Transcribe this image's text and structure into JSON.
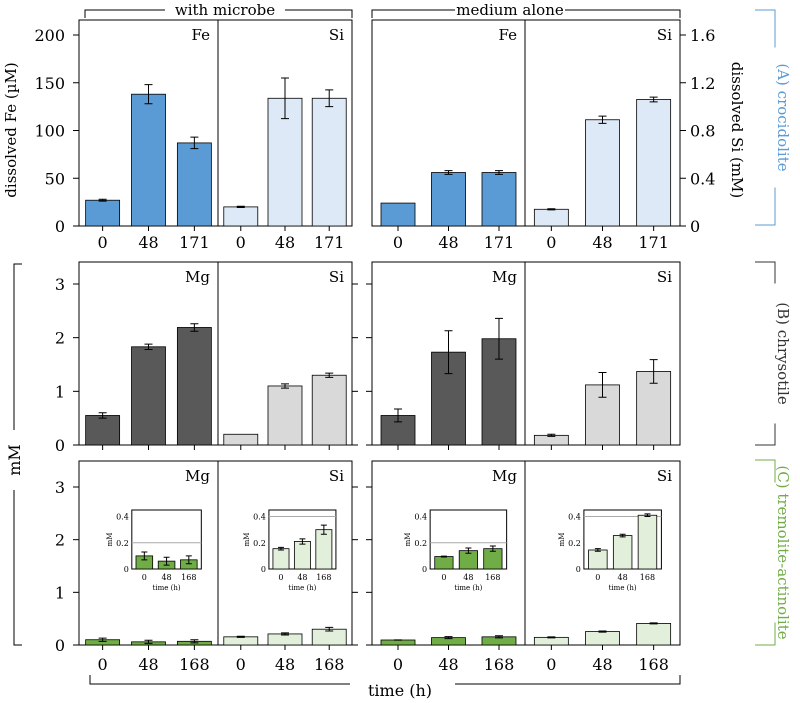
{
  "header": {
    "group_left": "with microbe",
    "group_right": "medium alone"
  },
  "footer": {
    "xlabel": "time (h)"
  },
  "left_axis": {
    "row_a_label": "dissolved Fe (µM)",
    "rows_bc_label": "mM"
  },
  "right_axis": {
    "row_a_label": "dissolved Si (mM)",
    "ticks": [
      "0",
      "0.4",
      "0.8",
      "1.2",
      "1.6"
    ]
  },
  "row_labels": [
    {
      "text": "(A) crocidolite",
      "color": "#5b9bd5"
    },
    {
      "text": "(B) chrysotile",
      "color": "#333333"
    },
    {
      "text": "(C) tremolite-actinolite",
      "color": "#70ad47"
    }
  ],
  "chart_data": [
    {
      "type": "bar",
      "row": "A",
      "group": "with microbe",
      "element": "Fe",
      "units": "µM",
      "categories": [
        "0",
        "48",
        "171"
      ],
      "values": [
        27,
        138,
        87
      ],
      "errors": [
        1,
        10,
        6
      ],
      "ylim": [
        0,
        200
      ],
      "yticks": [
        "0",
        "50",
        "100",
        "150",
        "200"
      ],
      "color": "#5b9bd5"
    },
    {
      "type": "bar",
      "row": "A",
      "group": "with microbe",
      "element": "Si",
      "units": "mM",
      "categories": [
        "0",
        "48",
        "171"
      ],
      "values": [
        0.16,
        1.07,
        1.07
      ],
      "errors": [
        0.005,
        0.17,
        0.07
      ],
      "ylim": [
        0,
        1.6
      ],
      "color": "#dde9f6"
    },
    {
      "type": "bar",
      "row": "A",
      "group": "medium alone",
      "element": "Fe",
      "units": "µM",
      "categories": [
        "0",
        "48",
        "171"
      ],
      "values": [
        24,
        56,
        56
      ],
      "errors": [
        0,
        2,
        2
      ],
      "ylim": [
        0,
        200
      ],
      "color": "#5b9bd5"
    },
    {
      "type": "bar",
      "row": "A",
      "group": "medium alone",
      "element": "Si",
      "units": "mM",
      "categories": [
        "0",
        "48",
        "171"
      ],
      "values": [
        0.14,
        0.89,
        1.06
      ],
      "errors": [
        0.005,
        0.03,
        0.02
      ],
      "ylim": [
        0,
        1.6
      ],
      "color": "#dde9f6"
    },
    {
      "type": "bar",
      "row": "B",
      "group": "with microbe",
      "element": "Mg",
      "units": "mM",
      "categories": [
        "0",
        "48",
        "171"
      ],
      "values": [
        0.55,
        1.83,
        2.19
      ],
      "errors": [
        0.05,
        0.05,
        0.07
      ],
      "ylim": [
        0,
        3.4
      ],
      "yticks": [
        "0",
        "1",
        "2",
        "3"
      ],
      "color": "#595959"
    },
    {
      "type": "bar",
      "row": "B",
      "group": "with microbe",
      "element": "Si",
      "units": "mM",
      "categories": [
        "0",
        "48",
        "171"
      ],
      "values": [
        0.2,
        1.1,
        1.3
      ],
      "errors": [
        0,
        0.04,
        0.04
      ],
      "ylim": [
        0,
        3.4
      ],
      "color": "#d9d9d9"
    },
    {
      "type": "bar",
      "row": "B",
      "group": "medium alone",
      "element": "Mg",
      "units": "mM",
      "categories": [
        "0",
        "48",
        "171"
      ],
      "values": [
        0.55,
        1.73,
        1.98
      ],
      "errors": [
        0.12,
        0.4,
        0.38
      ],
      "ylim": [
        0,
        3.4
      ],
      "color": "#595959"
    },
    {
      "type": "bar",
      "row": "B",
      "group": "medium alone",
      "element": "Si",
      "units": "mM",
      "categories": [
        "0",
        "48",
        "171"
      ],
      "values": [
        0.18,
        1.12,
        1.37
      ],
      "errors": [
        0.02,
        0.23,
        0.22
      ],
      "ylim": [
        0,
        3.4
      ],
      "color": "#d9d9d9"
    },
    {
      "type": "bar",
      "row": "C",
      "group": "with microbe",
      "element": "Mg",
      "units": "mM",
      "categories": [
        "0",
        "48",
        "168"
      ],
      "values": [
        0.1,
        0.06,
        0.07
      ],
      "errors": [
        0.03,
        0.03,
        0.03
      ],
      "ylim": [
        0,
        3.4
      ],
      "yticks": [
        "0",
        "1",
        "2",
        "3"
      ],
      "color": "#70ad47",
      "inset": {
        "ylabel": "mM",
        "xlabel": "time (h)",
        "yticks": [
          "0",
          "0.2",
          "0.4"
        ],
        "ylim": [
          0,
          0.45
        ],
        "refline": 0.2
      }
    },
    {
      "type": "bar",
      "row": "C",
      "group": "with microbe",
      "element": "Si",
      "units": "mM",
      "categories": [
        "0",
        "48",
        "168"
      ],
      "values": [
        0.155,
        0.21,
        0.3
      ],
      "errors": [
        0.01,
        0.02,
        0.035
      ],
      "ylim": [
        0,
        3.4
      ],
      "color": "#e2efda",
      "inset": {
        "ylabel": "mM",
        "xlabel": "time (h)",
        "yticks": [
          "0",
          "0.2",
          "0.4"
        ],
        "ylim": [
          0,
          0.45
        ],
        "refline": 0.4
      }
    },
    {
      "type": "bar",
      "row": "C",
      "group": "medium alone",
      "element": "Mg",
      "units": "mM",
      "categories": [
        "0",
        "48",
        "168"
      ],
      "values": [
        0.095,
        0.14,
        0.155
      ],
      "errors": [
        0.003,
        0.02,
        0.02
      ],
      "ylim": [
        0,
        3.4
      ],
      "color": "#70ad47",
      "inset": {
        "ylabel": "mM",
        "xlabel": "time (h)",
        "yticks": [
          "0",
          "0.2",
          "0.4"
        ],
        "ylim": [
          0,
          0.45
        ],
        "refline": 0.2
      }
    },
    {
      "type": "bar",
      "row": "C",
      "group": "medium alone",
      "element": "Si",
      "units": "mM",
      "categories": [
        "0",
        "48",
        "168"
      ],
      "values": [
        0.145,
        0.255,
        0.41
      ],
      "errors": [
        0.01,
        0.01,
        0.01
      ],
      "ylim": [
        0,
        3.4
      ],
      "color": "#e2efda",
      "inset": {
        "ylabel": "mM",
        "xlabel": "time (h)",
        "yticks": [
          "0",
          "0.2",
          "0.4"
        ],
        "ylim": [
          0,
          0.45
        ],
        "refline": 0.4
      }
    }
  ]
}
